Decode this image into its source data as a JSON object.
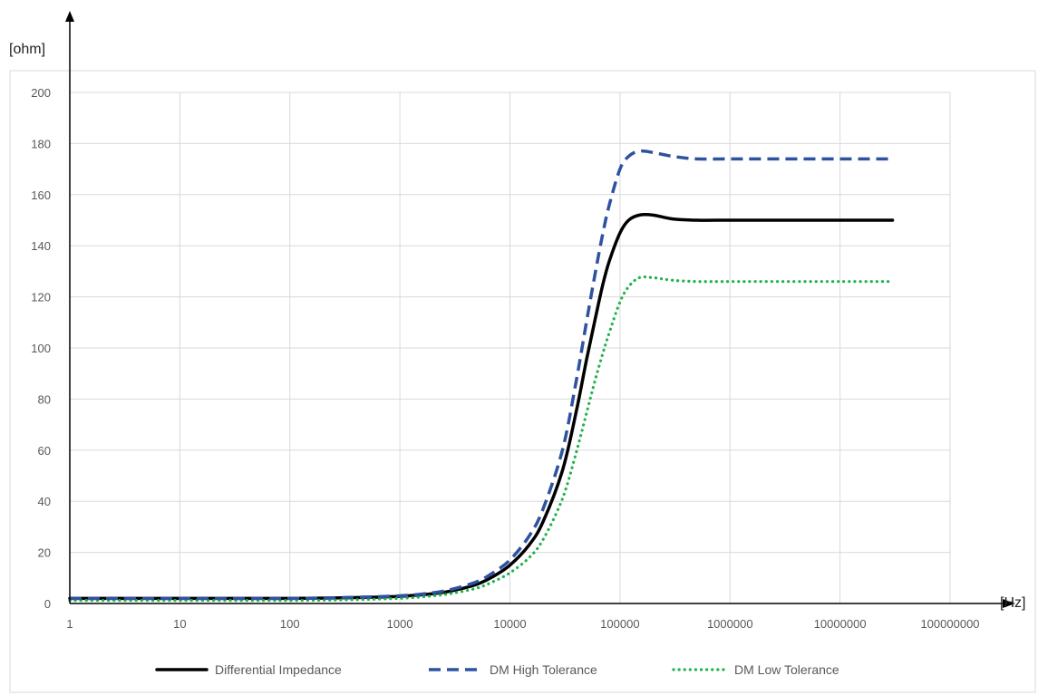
{
  "chart_data": {
    "type": "line",
    "title": "",
    "xlabel": "[Hz]",
    "ylabel": "[ohm]",
    "x_scale": "log",
    "xlim": [
      1,
      1000000000
    ],
    "ylim": [
      0,
      200
    ],
    "x_ticks": [
      "1",
      "10",
      "100",
      "1000",
      "10000",
      "100000",
      "1000000",
      "10000000",
      "100000000"
    ],
    "y_ticks": [
      "0",
      "20",
      "40",
      "60",
      "80",
      "100",
      "120",
      "140",
      "160",
      "180",
      "200"
    ],
    "grid": true,
    "legend_position": "bottom",
    "series": [
      {
        "name": "Differential Impedance",
        "color": "#000000",
        "style": "solid",
        "x": [
          1,
          10,
          100,
          300,
          1000,
          2000,
          3000,
          5000,
          7000,
          10000,
          15000,
          20000,
          30000,
          40000,
          50000,
          60000,
          70000,
          80000,
          100000,
          120000,
          150000,
          200000,
          300000,
          500000,
          1000000,
          3000000,
          10000000,
          30000000
        ],
        "y": [
          2,
          2,
          2,
          2.2,
          2.8,
          3.8,
          5,
          7.5,
          10.5,
          15,
          23,
          32,
          52,
          75,
          96,
          112,
          125,
          134,
          145,
          150,
          152,
          152,
          150.5,
          150,
          150,
          150,
          150,
          150
        ]
      },
      {
        "name": "DM High Tolerance",
        "color": "#2f52a0",
        "style": "dashed",
        "x": [
          1,
          10,
          100,
          300,
          1000,
          2000,
          3000,
          5000,
          7000,
          10000,
          15000,
          20000,
          30000,
          40000,
          50000,
          60000,
          70000,
          80000,
          100000,
          120000,
          150000,
          200000,
          300000,
          500000,
          1000000,
          3000000,
          10000000,
          30000000
        ],
        "y": [
          2,
          2,
          2,
          2.3,
          3,
          4.2,
          5.6,
          8.5,
          12,
          17,
          26.5,
          37,
          60,
          87,
          111,
          130,
          145,
          156,
          170,
          175,
          177,
          176.5,
          175,
          174,
          174,
          174,
          174,
          174
        ]
      },
      {
        "name": "DM Low Tolerance",
        "color": "#1fb24a",
        "style": "dotted",
        "x": [
          1,
          10,
          100,
          300,
          1000,
          2000,
          3000,
          5000,
          7000,
          10000,
          15000,
          20000,
          30000,
          40000,
          50000,
          60000,
          70000,
          80000,
          100000,
          120000,
          150000,
          200000,
          300000,
          500000,
          1000000,
          3000000,
          10000000,
          30000000
        ],
        "y": [
          1.2,
          1.2,
          1.2,
          1.4,
          2,
          3,
          4,
          6,
          8.5,
          12,
          18,
          25,
          41,
          59,
          75,
          88,
          98,
          106,
          118,
          124,
          127.5,
          127.5,
          126.5,
          126,
          126,
          126,
          126,
          126
        ]
      }
    ]
  }
}
